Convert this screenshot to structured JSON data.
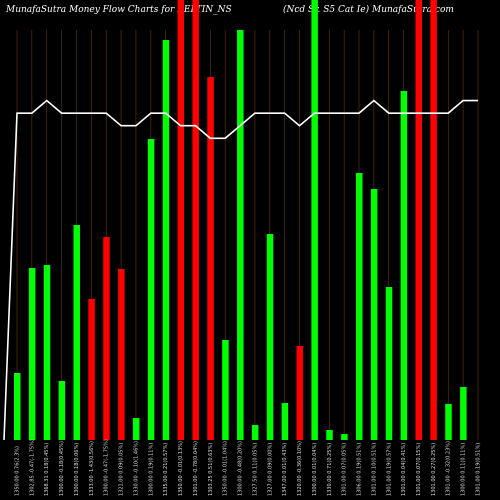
{
  "header": {
    "left_title": "MunafaSutra  Money Flow  Charts for RELTIN_NS",
    "right_title": "(Ncd Sr. S5 Cat Ie) MunafaSutra.com"
  },
  "colors": {
    "up": "#00ff00",
    "down": "#ff0000",
    "line": "#ffffff",
    "grid": "#8B4513",
    "background": "#000000"
  },
  "chart_data": {
    "type": "bar",
    "title": "MunafaSutra  Money Flow  Charts for RELTIN_NS",
    "categories": [
      "1350.00 0.76(2.3%)",
      "1302.85 -0.47(-1.75%)",
      "1368.31 0.18(0.45%)",
      "1300.00 -0.18(0.45%)",
      "1300.00 0.18(0.06%)",
      "1333.00 -1.43(0.56%)",
      "1300.00 -0.47(-1.75%)",
      "1321.00 0.09(0.05%)",
      "1330.00 -0.10(1.46%)",
      "1300.00 0.19(0.11%)",
      "1335.00 0.21(0.57%)",
      "1350.00 -0.01(0.13%)",
      "1301.00 -0.78(0.04%)",
      "1303.25 0.51(0.63%)",
      "1350.00 -0.01(1.04%)",
      "1300.00 -0.48(0.20%)",
      "1327.50 0.11(0.05%)",
      "1327.00 0.09(0.00%)",
      "1347.00 0.01(0.43%)",
      "1320.00 -0.36(0.10%)",
      "1300.00 0.01(0.04%)",
      "1330.00 0.71(0.25%)",
      "1301.00 0.07(0.05%)",
      "1306.00 0.19(0.51%)",
      "1301.00 0.10(0.51%)",
      "1301.00 0.19(0.57%)",
      "1301.00 0.04(0.41%)",
      "1301.00 0.07(0.15%)",
      "1301.00 0.27(0.25%)",
      "1301.00 -0.32(0.23%)",
      "1300.00 0.11(0.11%)",
      "1301.00 0.19(0.51%)"
    ],
    "series": [
      {
        "values": [
          67,
          172,
          175,
          59,
          215,
          141,
          203,
          171,
          22,
          301,
          400,
          440,
          440,
          363,
          100,
          410,
          15,
          206,
          37,
          94,
          440,
          10,
          6,
          267,
          251,
          153,
          349,
          440,
          440,
          36,
          53,
          0
        ],
        "directions": [
          "up",
          "up",
          "up",
          "up",
          "up",
          "down",
          "down",
          "down",
          "up",
          "up",
          "up",
          "down",
          "down",
          "down",
          "up",
          "up",
          "up",
          "up",
          "up",
          "down",
          "up",
          "up",
          "up",
          "up",
          "up",
          "up",
          "up",
          "down",
          "down",
          "up",
          "up",
          "up"
        ]
      },
      {
        "values": [
          1336,
          1336,
          1337,
          1336,
          1336,
          1336,
          1336,
          1335,
          1335,
          1336,
          1336,
          1335,
          1335,
          1334,
          1334,
          1335,
          1336,
          1336,
          1336,
          1335,
          1336,
          1336,
          1336,
          1336,
          1337,
          1336,
          1336,
          1336,
          1336,
          1336,
          1337,
          1337
        ]
      }
    ],
    "ylim": [
      0,
      440
    ],
    "line_ylim": [
      1310,
      1345
    ],
    "grid": true
  }
}
